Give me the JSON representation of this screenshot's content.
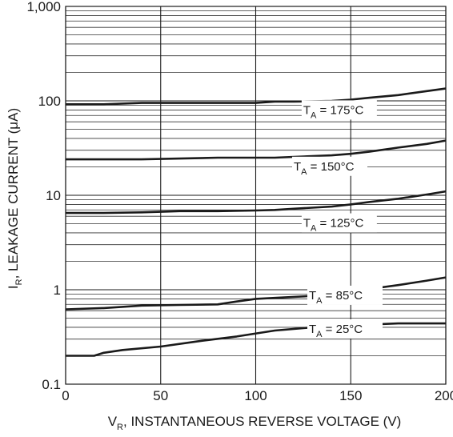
{
  "chart_data": {
    "type": "line",
    "y_scale": "log",
    "xlim": [
      0,
      200
    ],
    "ylim": [
      0.1,
      1000
    ],
    "grid": true,
    "x_ticks": [
      0,
      50,
      100,
      150,
      200
    ],
    "x_tick_labels": [
      "0",
      "50",
      "100",
      "150",
      "200"
    ],
    "y_ticks": [
      0.1,
      1,
      10,
      100,
      1000
    ],
    "y_tick_labels": [
      "0.1",
      "1",
      "10",
      "100",
      "1,000"
    ],
    "xlabel": {
      "main": "V",
      "sub": "R",
      "rest": ", INSTANTANEOUS REVERSE VOLTAGE (V)"
    },
    "ylabel": {
      "main": "I",
      "sub": "R",
      "rest": ", LEAKAGE CURRENT (μA)"
    },
    "series": [
      {
        "label_main": "T",
        "label_sub": "A",
        "label_rest": " = 175°C",
        "label_at": [
          125,
          77
        ],
        "x": [
          0,
          20,
          40,
          60,
          80,
          100,
          110,
          120,
          140,
          150,
          160,
          175,
          190,
          200
        ],
        "y": [
          92,
          92,
          95,
          95,
          95,
          95,
          98,
          98,
          100,
          103,
          108,
          115,
          127,
          135
        ]
      },
      {
        "label_main": "T",
        "label_sub": "A",
        "label_rest": " = 150°C",
        "label_at": [
          120,
          19.5
        ],
        "x": [
          0,
          20,
          40,
          60,
          80,
          100,
          110,
          120,
          140,
          150,
          160,
          175,
          190,
          200
        ],
        "y": [
          24,
          24,
          24,
          24.5,
          25,
          25,
          25,
          25.5,
          26.5,
          27.5,
          29,
          32,
          35,
          38
        ]
      },
      {
        "label_main": "T",
        "label_sub": "A",
        "label_rest": " = 125°C",
        "label_at": [
          125,
          4.9
        ],
        "x": [
          0,
          20,
          40,
          60,
          80,
          100,
          110,
          120,
          140,
          150,
          160,
          175,
          190,
          200
        ],
        "y": [
          6.5,
          6.5,
          6.6,
          6.8,
          6.8,
          6.9,
          7.0,
          7.2,
          7.6,
          8.0,
          8.5,
          9.2,
          10.2,
          11
        ]
      },
      {
        "label_main": "T",
        "label_sub": "A",
        "label_rest": " = 85°C",
        "label_at": [
          128,
          0.84
        ],
        "x": [
          0,
          20,
          40,
          60,
          80,
          90,
          100,
          110,
          130,
          150,
          160,
          175,
          190,
          200
        ],
        "y": [
          0.62,
          0.64,
          0.68,
          0.69,
          0.7,
          0.75,
          0.8,
          0.82,
          0.86,
          0.93,
          1.02,
          1.12,
          1.25,
          1.35
        ]
      },
      {
        "label_main": "T",
        "label_sub": "A",
        "label_rest": " = 25°C",
        "label_at": [
          128,
          0.37
        ],
        "x": [
          0,
          10,
          15,
          20,
          30,
          50,
          70,
          90,
          110,
          130,
          150,
          175,
          200
        ],
        "y": [
          0.2,
          0.2,
          0.2,
          0.215,
          0.23,
          0.25,
          0.285,
          0.32,
          0.37,
          0.4,
          0.42,
          0.44,
          0.44
        ]
      }
    ]
  }
}
